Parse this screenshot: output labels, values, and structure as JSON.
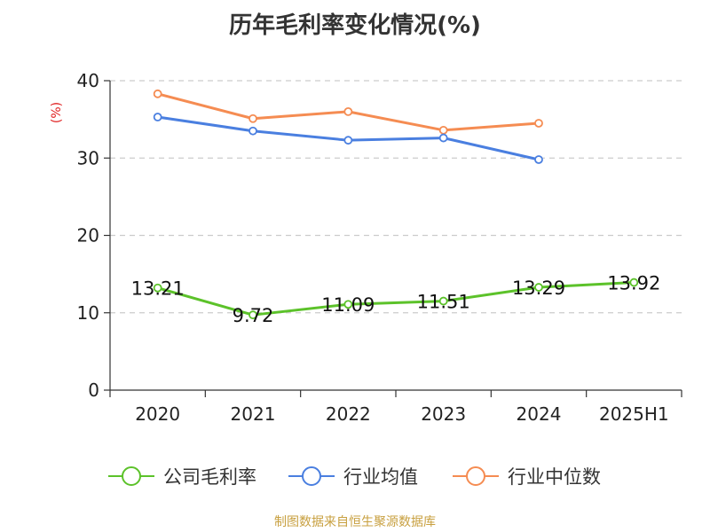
{
  "title": "历年毛利率变化情况(%)",
  "source": "制图数据来自恒生聚源数据库",
  "chart_data": {
    "type": "line",
    "title": "历年毛利率变化情况(%)",
    "ylabel": "(%)",
    "xlabel": "",
    "ylim": [
      0,
      40
    ],
    "yticks": [
      0,
      10,
      20,
      30,
      40
    ],
    "categories": [
      "2020",
      "2021",
      "2022",
      "2023",
      "2024",
      "2025H1"
    ],
    "grid": true,
    "legend_position": "bottom",
    "series": [
      {
        "name": "公司毛利率",
        "color": "#5cc22a",
        "values": [
          13.21,
          9.72,
          11.09,
          11.51,
          13.29,
          13.92
        ],
        "labels": [
          "13.21",
          "9.72",
          "11.09",
          "11.51",
          "13.29",
          "13.92"
        ]
      },
      {
        "name": "行业均值",
        "color": "#4a7fe0",
        "values": [
          35.3,
          33.5,
          32.3,
          32.6,
          29.8,
          null
        ]
      },
      {
        "name": "行业中位数",
        "color": "#f58c52",
        "values": [
          38.3,
          35.1,
          36.0,
          33.6,
          34.5,
          null
        ]
      }
    ]
  }
}
